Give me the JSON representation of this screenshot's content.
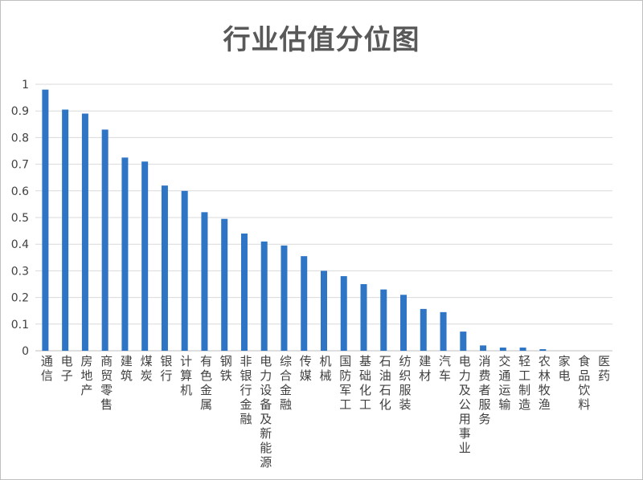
{
  "chart_data": {
    "type": "bar",
    "title": "行业估值分位图",
    "xlabel": "",
    "ylabel": "",
    "ylim": [
      0,
      1
    ],
    "yticks": [
      "0",
      "0.1",
      "0.2",
      "0.3",
      "0.4",
      "0.5",
      "0.6",
      "0.7",
      "0.8",
      "0.9",
      "1"
    ],
    "grid": true,
    "legend": "none",
    "bar_color": "#2e75c6",
    "categories": [
      "通信",
      "电子",
      "房地产",
      "商贸零售",
      "建筑",
      "煤炭",
      "银行",
      "计算机",
      "有色金属",
      "钢铁",
      "非银行金融",
      "电力设备及新能源",
      "综合金融",
      "传媒",
      "机械",
      "国防军工",
      "基础化工",
      "石油石化",
      "纺织服装",
      "建材",
      "汽车",
      "电力及公用事业",
      "消费者服务",
      "交通运输",
      "轻工制造",
      "农林牧渔",
      "家电",
      "食品饮料",
      "医药"
    ],
    "values": [
      0.98,
      0.905,
      0.89,
      0.83,
      0.725,
      0.71,
      0.62,
      0.6,
      0.52,
      0.495,
      0.44,
      0.41,
      0.395,
      0.355,
      0.3,
      0.28,
      0.25,
      0.23,
      0.21,
      0.157,
      0.145,
      0.072,
      0.02,
      0.012,
      0.012,
      0.006,
      0.0,
      0.0,
      0.0
    ]
  }
}
